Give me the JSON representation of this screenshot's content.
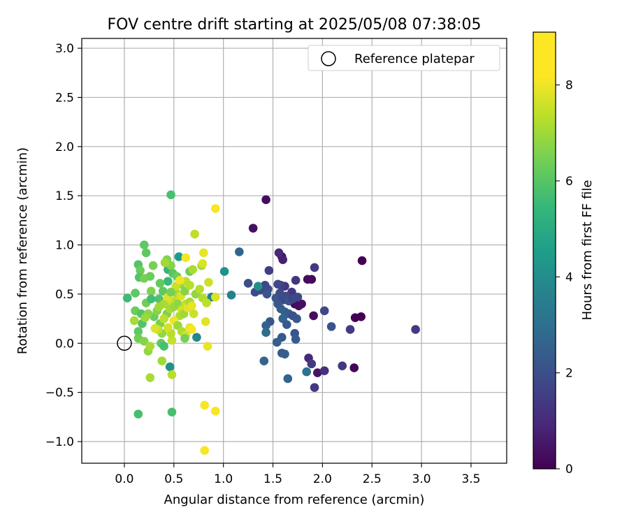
{
  "chart_data": {
    "type": "scatter",
    "title": "FOV centre drift starting at 2025/05/08 07:38:05",
    "xlabel": "Angular distance from reference (arcmin)",
    "ylabel": "Rotation from reference (arcmin)",
    "xlim": [
      -0.43,
      3.86
    ],
    "ylim": [
      -1.22,
      3.1
    ],
    "xticks": [
      0.0,
      0.5,
      1.0,
      1.5,
      2.0,
      2.5,
      3.0,
      3.5
    ],
    "xtick_labels": [
      "0.0",
      "0.5",
      "1.0",
      "1.5",
      "2.0",
      "2.5",
      "3.0",
      "3.5"
    ],
    "yticks": [
      -1.0,
      -0.5,
      0.0,
      0.5,
      1.0,
      1.5,
      2.0,
      2.5,
      3.0
    ],
    "ytick_labels": [
      "−1.0",
      "−0.5",
      "0.0",
      "0.5",
      "1.0",
      "1.5",
      "2.0",
      "2.5",
      "3.0"
    ],
    "grid": true,
    "legend": {
      "placement": "top-right",
      "entries": [
        "Reference platepar"
      ]
    },
    "reference_point": {
      "x": 0.0,
      "y": 0.0,
      "label": "Reference platepar"
    },
    "colorbar": {
      "label": "Hours from first FF file",
      "colormap": "viridis",
      "range": [
        0,
        9.1
      ],
      "ticks": [
        0,
        2,
        4,
        6,
        8
      ],
      "tick_labels": [
        "0",
        "2",
        "4",
        "6",
        "8"
      ]
    },
    "points": [
      {
        "x": 2.4,
        "y": 0.84,
        "t": 0.0
      },
      {
        "x": 1.43,
        "y": 1.46,
        "t": 0.3
      },
      {
        "x": 1.3,
        "y": 1.17,
        "t": 0.4
      },
      {
        "x": 1.59,
        "y": 0.88,
        "t": 0.4
      },
      {
        "x": 2.39,
        "y": 0.27,
        "t": 0.0
      },
      {
        "x": 2.33,
        "y": 0.26,
        "t": 0.0
      },
      {
        "x": 2.32,
        "y": -0.25,
        "t": 0.1
      },
      {
        "x": 1.89,
        "y": 0.65,
        "t": 0.2
      },
      {
        "x": 1.85,
        "y": 0.65,
        "t": 0.3
      },
      {
        "x": 1.72,
        "y": 0.4,
        "t": 0.2
      },
      {
        "x": 1.76,
        "y": 0.38,
        "t": 0.3
      },
      {
        "x": 1.79,
        "y": 0.4,
        "t": 0.4
      },
      {
        "x": 1.91,
        "y": 0.28,
        "t": 0.3
      },
      {
        "x": 1.95,
        "y": -0.3,
        "t": 0.5
      },
      {
        "x": 1.6,
        "y": 0.85,
        "t": 0.8
      },
      {
        "x": 1.56,
        "y": 0.92,
        "t": 1.0
      },
      {
        "x": 1.92,
        "y": 0.77,
        "t": 1.6
      },
      {
        "x": 1.86,
        "y": -0.15,
        "t": 1.0
      },
      {
        "x": 2.02,
        "y": -0.28,
        "t": 1.3
      },
      {
        "x": 1.92,
        "y": -0.45,
        "t": 1.6
      },
      {
        "x": 1.89,
        "y": -0.21,
        "t": 1.6
      },
      {
        "x": 2.2,
        "y": -0.23,
        "t": 1.5
      },
      {
        "x": 2.28,
        "y": 0.14,
        "t": 1.6
      },
      {
        "x": 2.94,
        "y": 0.14,
        "t": 1.6
      },
      {
        "x": 2.09,
        "y": 0.17,
        "t": 2.4
      },
      {
        "x": 2.02,
        "y": 0.33,
        "t": 2.0
      },
      {
        "x": 1.73,
        "y": 0.64,
        "t": 1.4
      },
      {
        "x": 1.69,
        "y": 0.52,
        "t": 1.5
      },
      {
        "x": 1.62,
        "y": 0.58,
        "t": 1.4
      },
      {
        "x": 1.58,
        "y": 0.59,
        "t": 1.7
      },
      {
        "x": 1.55,
        "y": 0.6,
        "t": 2.0
      },
      {
        "x": 1.46,
        "y": 0.74,
        "t": 1.7
      },
      {
        "x": 1.42,
        "y": 0.59,
        "t": 1.9
      },
      {
        "x": 1.37,
        "y": 0.54,
        "t": 2.0
      },
      {
        "x": 1.32,
        "y": 0.52,
        "t": 2.1
      },
      {
        "x": 1.25,
        "y": 0.61,
        "t": 2.2
      },
      {
        "x": 1.45,
        "y": 0.55,
        "t": 2.1
      },
      {
        "x": 1.44,
        "y": 0.5,
        "t": 2.4
      },
      {
        "x": 1.53,
        "y": 0.46,
        "t": 2.5
      },
      {
        "x": 1.57,
        "y": 0.51,
        "t": 2.2
      },
      {
        "x": 1.6,
        "y": 0.44,
        "t": 2.0
      },
      {
        "x": 1.63,
        "y": 0.48,
        "t": 2.1
      },
      {
        "x": 1.66,
        "y": 0.43,
        "t": 2.3
      },
      {
        "x": 1.7,
        "y": 0.45,
        "t": 1.9
      },
      {
        "x": 1.75,
        "y": 0.47,
        "t": 2.0
      },
      {
        "x": 1.55,
        "y": 0.4,
        "t": 2.5
      },
      {
        "x": 1.58,
        "y": 0.35,
        "t": 2.6
      },
      {
        "x": 1.62,
        "y": 0.32,
        "t": 2.8
      },
      {
        "x": 1.66,
        "y": 0.3,
        "t": 2.6
      },
      {
        "x": 1.7,
        "y": 0.28,
        "t": 2.3
      },
      {
        "x": 1.74,
        "y": 0.25,
        "t": 2.5
      },
      {
        "x": 1.6,
        "y": 0.25,
        "t": 2.9
      },
      {
        "x": 1.64,
        "y": 0.19,
        "t": 2.6
      },
      {
        "x": 1.72,
        "y": 0.1,
        "t": 2.4
      },
      {
        "x": 1.73,
        "y": 0.04,
        "t": 2.6
      },
      {
        "x": 1.59,
        "y": 0.06,
        "t": 2.5
      },
      {
        "x": 1.54,
        "y": 0.01,
        "t": 2.7
      },
      {
        "x": 1.47,
        "y": 0.22,
        "t": 2.4
      },
      {
        "x": 1.43,
        "y": 0.18,
        "t": 2.8
      },
      {
        "x": 1.43,
        "y": 0.11,
        "t": 3.2
      },
      {
        "x": 1.59,
        "y": -0.1,
        "t": 2.6
      },
      {
        "x": 1.62,
        "y": -0.11,
        "t": 2.7
      },
      {
        "x": 1.41,
        "y": -0.18,
        "t": 2.9
      },
      {
        "x": 1.65,
        "y": -0.36,
        "t": 2.9
      },
      {
        "x": 1.84,
        "y": -0.29,
        "t": 3.4
      },
      {
        "x": 1.16,
        "y": 0.93,
        "t": 2.9
      },
      {
        "x": 1.08,
        "y": 0.49,
        "t": 4.0
      },
      {
        "x": 1.01,
        "y": 0.73,
        "t": 4.6
      },
      {
        "x": 1.35,
        "y": 0.58,
        "t": 4.6
      },
      {
        "x": 0.88,
        "y": 0.47,
        "t": 4.2
      },
      {
        "x": 0.73,
        "y": 0.06,
        "t": 4.2
      },
      {
        "x": 0.46,
        "y": -0.24,
        "t": 4.6
      },
      {
        "x": 0.55,
        "y": 0.88,
        "t": 5.0
      },
      {
        "x": 0.47,
        "y": 1.51,
        "t": 6.4
      },
      {
        "x": 0.48,
        "y": -0.7,
        "t": 6.4
      },
      {
        "x": 0.14,
        "y": -0.72,
        "t": 6.4
      },
      {
        "x": 0.03,
        "y": 0.46,
        "t": 6.2
      },
      {
        "x": 0.2,
        "y": 1.0,
        "t": 6.8
      },
      {
        "x": 0.22,
        "y": 0.92,
        "t": 6.8
      },
      {
        "x": 0.14,
        "y": 0.8,
        "t": 6.6
      },
      {
        "x": 0.16,
        "y": 0.74,
        "t": 7.0
      },
      {
        "x": 0.15,
        "y": 0.67,
        "t": 6.6
      },
      {
        "x": 0.2,
        "y": 0.66,
        "t": 7.2
      },
      {
        "x": 0.26,
        "y": 0.68,
        "t": 7.0
      },
      {
        "x": 0.29,
        "y": 0.79,
        "t": 7.2
      },
      {
        "x": 0.43,
        "y": 0.85,
        "t": 7.3
      },
      {
        "x": 0.44,
        "y": 0.75,
        "t": 6.0
      },
      {
        "x": 0.47,
        "y": 0.79,
        "t": 7.4
      },
      {
        "x": 0.41,
        "y": 0.82,
        "t": 7.8
      },
      {
        "x": 0.44,
        "y": 0.63,
        "t": 6.1
      },
      {
        "x": 0.49,
        "y": 0.71,
        "t": 6.7
      },
      {
        "x": 0.53,
        "y": 0.68,
        "t": 7.0
      },
      {
        "x": 0.57,
        "y": 0.6,
        "t": 7.6
      },
      {
        "x": 0.62,
        "y": 0.63,
        "t": 8.2
      },
      {
        "x": 0.66,
        "y": 0.73,
        "t": 7.0
      },
      {
        "x": 0.69,
        "y": 0.75,
        "t": 7.9
      },
      {
        "x": 0.78,
        "y": 0.79,
        "t": 7.8
      },
      {
        "x": 0.79,
        "y": 0.81,
        "t": 8.6
      },
      {
        "x": 0.8,
        "y": 0.92,
        "t": 8.8
      },
      {
        "x": 0.71,
        "y": 1.11,
        "t": 8.2
      },
      {
        "x": 0.92,
        "y": 1.37,
        "t": 9.0
      },
      {
        "x": 0.62,
        "y": 0.87,
        "t": 9.0
      },
      {
        "x": 0.39,
        "y": 0.53,
        "t": 6.8
      },
      {
        "x": 0.35,
        "y": 0.45,
        "t": 6.6
      },
      {
        "x": 0.27,
        "y": 0.53,
        "t": 7.3
      },
      {
        "x": 0.11,
        "y": 0.51,
        "t": 6.8
      },
      {
        "x": 0.22,
        "y": 0.41,
        "t": 7.1
      },
      {
        "x": 0.11,
        "y": 0.33,
        "t": 7.0
      },
      {
        "x": 0.17,
        "y": 0.3,
        "t": 6.6
      },
      {
        "x": 0.1,
        "y": 0.23,
        "t": 7.9
      },
      {
        "x": 0.14,
        "y": 0.12,
        "t": 6.8
      },
      {
        "x": 0.14,
        "y": 0.05,
        "t": 7.1
      },
      {
        "x": 0.2,
        "y": 0.02,
        "t": 7.4
      },
      {
        "x": 0.24,
        "y": -0.08,
        "t": 7.6
      },
      {
        "x": 0.26,
        "y": -0.03,
        "t": 7.9
      },
      {
        "x": 0.37,
        "y": 0.0,
        "t": 6.8
      },
      {
        "x": 0.4,
        "y": -0.03,
        "t": 6.4
      },
      {
        "x": 0.38,
        "y": -0.18,
        "t": 7.8
      },
      {
        "x": 0.26,
        "y": -0.35,
        "t": 7.9
      },
      {
        "x": 0.48,
        "y": -0.32,
        "t": 8.1
      },
      {
        "x": 0.48,
        "y": 0.03,
        "t": 8.3
      },
      {
        "x": 0.3,
        "y": 0.27,
        "t": 7.0
      },
      {
        "x": 0.33,
        "y": 0.33,
        "t": 7.4
      },
      {
        "x": 0.36,
        "y": 0.2,
        "t": 7.2
      },
      {
        "x": 0.38,
        "y": 0.1,
        "t": 7.6
      },
      {
        "x": 0.34,
        "y": 0.14,
        "t": 8.3
      },
      {
        "x": 0.31,
        "y": 0.15,
        "t": 8.6
      },
      {
        "x": 0.4,
        "y": 0.4,
        "t": 7.9
      },
      {
        "x": 0.43,
        "y": 0.3,
        "t": 7.3
      },
      {
        "x": 0.46,
        "y": 0.35,
        "t": 7.9
      },
      {
        "x": 0.48,
        "y": 0.42,
        "t": 8.4
      },
      {
        "x": 0.5,
        "y": 0.37,
        "t": 7.7
      },
      {
        "x": 0.52,
        "y": 0.44,
        "t": 8.2
      },
      {
        "x": 0.54,
        "y": 0.4,
        "t": 7.5
      },
      {
        "x": 0.56,
        "y": 0.28,
        "t": 8.0
      },
      {
        "x": 0.58,
        "y": 0.34,
        "t": 8.5
      },
      {
        "x": 0.6,
        "y": 0.3,
        "t": 7.8
      },
      {
        "x": 0.62,
        "y": 0.4,
        "t": 8.3
      },
      {
        "x": 0.64,
        "y": 0.36,
        "t": 8.7
      },
      {
        "x": 0.66,
        "y": 0.42,
        "t": 7.9
      },
      {
        "x": 0.68,
        "y": 0.38,
        "t": 8.8
      },
      {
        "x": 0.7,
        "y": 0.3,
        "t": 8.4
      },
      {
        "x": 0.72,
        "y": 0.5,
        "t": 7.6
      },
      {
        "x": 0.76,
        "y": 0.55,
        "t": 8.1
      },
      {
        "x": 0.79,
        "y": 0.46,
        "t": 8.0
      },
      {
        "x": 0.83,
        "y": 0.41,
        "t": 8.2
      },
      {
        "x": 0.85,
        "y": 0.62,
        "t": 8.4
      },
      {
        "x": 0.92,
        "y": 0.47,
        "t": 8.6
      },
      {
        "x": 0.82,
        "y": 0.22,
        "t": 8.7
      },
      {
        "x": 0.84,
        "y": -0.03,
        "t": 8.8
      },
      {
        "x": 0.81,
        "y": -0.63,
        "t": 9.0
      },
      {
        "x": 0.92,
        "y": -0.69,
        "t": 9.0
      },
      {
        "x": 0.81,
        "y": -1.09,
        "t": 9.0
      },
      {
        "x": 0.5,
        "y": 0.23,
        "t": 8.9
      },
      {
        "x": 0.54,
        "y": 0.18,
        "t": 7.7
      },
      {
        "x": 0.58,
        "y": 0.12,
        "t": 8.0
      },
      {
        "x": 0.62,
        "y": 0.08,
        "t": 8.5
      },
      {
        "x": 0.66,
        "y": 0.16,
        "t": 8.8
      },
      {
        "x": 0.68,
        "y": 0.14,
        "t": 9.0
      },
      {
        "x": 0.61,
        "y": 0.05,
        "t": 7.2
      },
      {
        "x": 0.47,
        "y": 0.1,
        "t": 8.1
      },
      {
        "x": 0.44,
        "y": 0.16,
        "t": 8.5
      },
      {
        "x": 0.4,
        "y": 0.25,
        "t": 8.2
      },
      {
        "x": 0.35,
        "y": 0.37,
        "t": 7.8
      },
      {
        "x": 0.44,
        "y": 0.47,
        "t": 8.6
      },
      {
        "x": 0.52,
        "y": 0.52,
        "t": 7.9
      },
      {
        "x": 0.57,
        "y": 0.48,
        "t": 8.6
      },
      {
        "x": 0.61,
        "y": 0.53,
        "t": 7.4
      },
      {
        "x": 0.66,
        "y": 0.59,
        "t": 8.1
      },
      {
        "x": 0.52,
        "y": 0.58,
        "t": 8.4
      },
      {
        "x": 0.56,
        "y": 0.64,
        "t": 8.9
      },
      {
        "x": 0.47,
        "y": 0.52,
        "t": 7.2
      },
      {
        "x": 0.36,
        "y": 0.61,
        "t": 6.9
      },
      {
        "x": 0.27,
        "y": 0.45,
        "t": 6.3
      },
      {
        "x": 0.24,
        "y": 0.3,
        "t": 7.5
      },
      {
        "x": 0.18,
        "y": 0.2,
        "t": 6.6
      },
      {
        "x": 0.21,
        "y": 0.26,
        "t": 7.7
      }
    ]
  }
}
